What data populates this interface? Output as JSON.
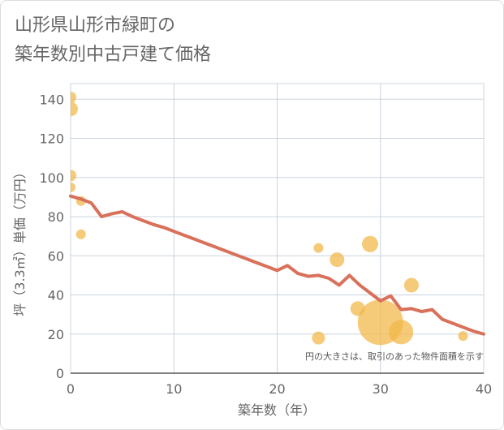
{
  "title": "山形県山形市緑町の\n築年数別中古戸建て価格",
  "chart_data": {
    "type": "scatter",
    "xlabel": "築年数（年）",
    "ylabel": "坪（3.3㎡）単価（万円）",
    "xlim": [
      0,
      40
    ],
    "ylim": [
      0,
      148
    ],
    "xticks": [
      0,
      10,
      20,
      30,
      40
    ],
    "yticks": [
      0,
      20,
      40,
      60,
      80,
      100,
      120,
      140
    ],
    "grid": true,
    "note": "円の大きさは、取引のあった物件面積を示す",
    "colors": {
      "line": "#d9705a",
      "bubble": "#f2b84b",
      "grid": "#c9d4de"
    },
    "bubbles": [
      {
        "x": 0,
        "y": 141,
        "r": 7
      },
      {
        "x": 0,
        "y": 135,
        "r": 9
      },
      {
        "x": 0,
        "y": 101,
        "r": 7
      },
      {
        "x": 0,
        "y": 95,
        "r": 6
      },
      {
        "x": 1,
        "y": 88,
        "r": 6
      },
      {
        "x": 1,
        "y": 71,
        "r": 6
      },
      {
        "x": 24,
        "y": 64,
        "r": 6
      },
      {
        "x": 25.8,
        "y": 58,
        "r": 9
      },
      {
        "x": 29,
        "y": 66,
        "r": 10
      },
      {
        "x": 27.8,
        "y": 33,
        "r": 9
      },
      {
        "x": 24,
        "y": 18,
        "r": 8
      },
      {
        "x": 30,
        "y": 26,
        "r": 28
      },
      {
        "x": 32,
        "y": 21,
        "r": 15
      },
      {
        "x": 33,
        "y": 45,
        "r": 9
      },
      {
        "x": 38,
        "y": 19,
        "r": 6
      }
    ],
    "series": [
      {
        "x": [
          0,
          1,
          2,
          3,
          4,
          5,
          6,
          7,
          8,
          9,
          10,
          11,
          12,
          13,
          14,
          15,
          16,
          17,
          18,
          19,
          20,
          21,
          22,
          23,
          24,
          25,
          26,
          27,
          28,
          29,
          30,
          31,
          32,
          33,
          34,
          35,
          36,
          37,
          38,
          39,
          40
        ],
        "y": [
          90.5,
          89,
          87,
          80,
          81.5,
          82.5,
          80,
          78,
          76,
          74.5,
          72.5,
          70.5,
          68.5,
          66.5,
          64.5,
          62.5,
          60.5,
          58.5,
          56.5,
          54.5,
          52.5,
          55,
          51,
          49.5,
          50,
          48.5,
          45,
          50,
          45,
          41,
          37,
          39.5,
          32.5,
          33,
          31.5,
          32.5,
          27.5,
          25.5,
          23.5,
          21.5,
          20
        ]
      }
    ]
  }
}
